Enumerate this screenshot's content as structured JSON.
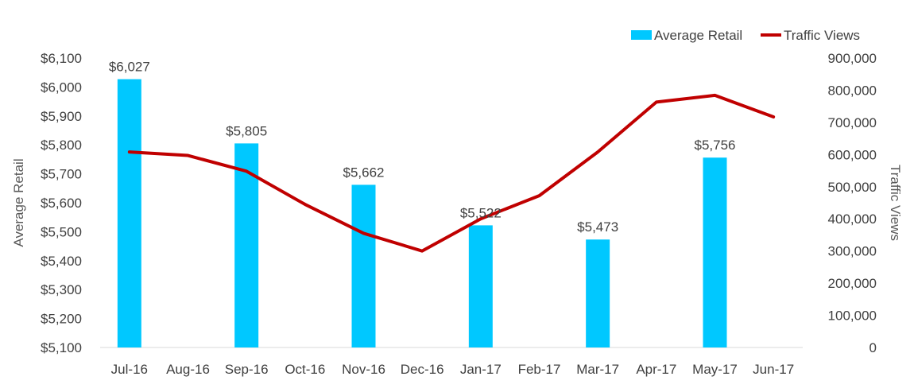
{
  "chart_data": {
    "type": "bar",
    "categories": [
      "Jul-16",
      "Aug-16",
      "Sep-16",
      "Oct-16",
      "Nov-16",
      "Dec-16",
      "Jan-17",
      "Feb-17",
      "Mar-17",
      "Apr-17",
      "May-17",
      "Jun-17"
    ],
    "series": [
      {
        "name": "Average Retail",
        "type": "bar",
        "axis": "left",
        "color": "#00C8FF",
        "values": [
          6027,
          null,
          5805,
          null,
          5662,
          null,
          5522,
          null,
          5473,
          null,
          5756,
          null
        ],
        "labels": [
          "$6,027",
          "",
          "$5,805",
          "",
          "$5,662",
          "",
          "$5,522",
          "",
          "$5,473",
          "",
          "$5,756",
          ""
        ]
      },
      {
        "name": "Traffic Views",
        "type": "line",
        "axis": "right",
        "color": "#C00000",
        "values": [
          608000,
          597000,
          548000,
          445000,
          355000,
          300000,
          400000,
          472000,
          608000,
          763000,
          784000,
          717000
        ]
      }
    ],
    "ylabel": "Average Retail",
    "y2label": "Traffic Views",
    "ylim": [
      5100,
      6100
    ],
    "y2lim": [
      0,
      900000
    ],
    "yticks": [
      "$5,100",
      "$5,200",
      "$5,300",
      "$5,400",
      "$5,500",
      "$5,600",
      "$5,700",
      "$5,800",
      "$5,900",
      "$6,000",
      "$6,100"
    ],
    "y2ticks": [
      "0",
      "100,000",
      "200,000",
      "300,000",
      "400,000",
      "500,000",
      "600,000",
      "700,000",
      "800,000",
      "900,000"
    ],
    "legend_position": "top-right",
    "grid": false
  }
}
